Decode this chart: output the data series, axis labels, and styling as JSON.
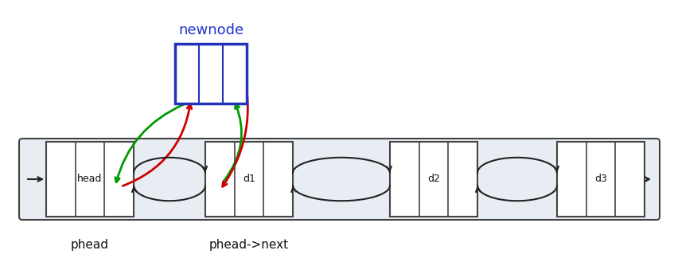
{
  "bg_color": "#ffffff",
  "list_bg_color": "#e8edf4",
  "node_fill": "#ffffff",
  "node_edge": "#444444",
  "newnode_edge": "#2233bb",
  "newnode_label_color": "#2233cc",
  "arrow_green": "#009900",
  "arrow_red": "#cc0000",
  "arrow_black": "#222222",
  "newnode_label": "newnode",
  "label_phead": "phead",
  "label_phead_next": "phead->next",
  "node_labels": [
    "head",
    "d1",
    "d2",
    "d3"
  ],
  "figsize": [
    8.47,
    3.34
  ],
  "dpi": 100
}
